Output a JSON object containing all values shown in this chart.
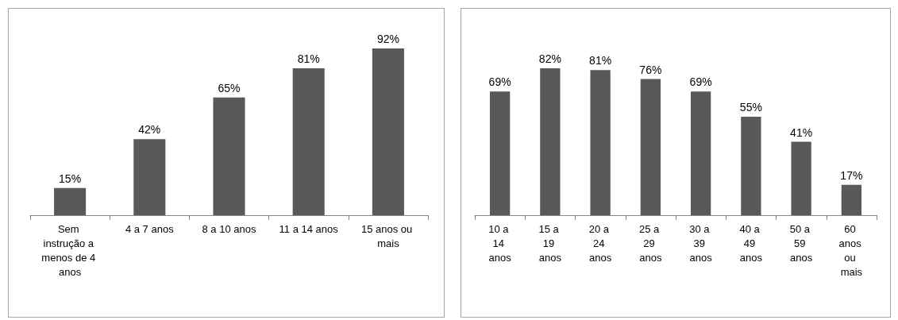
{
  "chart_data": [
    {
      "type": "bar",
      "categories": [
        "Sem instrução a menos de 4 anos",
        "4 a 7 anos",
        "8 a 10 anos",
        "11 a 14 anos",
        "15 anos ou mais"
      ],
      "values": [
        15,
        42,
        65,
        81,
        92
      ],
      "value_labels": [
        "15%",
        "42%",
        "65%",
        "81%",
        "92%"
      ],
      "color": "#595959"
    },
    {
      "type": "bar",
      "categories": [
        "10 a 14 anos",
        "15 a 19 anos",
        "20 a 24 anos",
        "25 a 29 anos",
        "30 a 39 anos",
        "40 a 49 anos",
        "50 a 59 anos",
        "60 anos ou mais"
      ],
      "values": [
        69,
        82,
        81,
        76,
        69,
        55,
        41,
        17
      ],
      "value_labels": [
        "69%",
        "82%",
        "81%",
        "76%",
        "69%",
        "55%",
        "41%",
        "17%"
      ],
      "color": "#595959"
    }
  ]
}
